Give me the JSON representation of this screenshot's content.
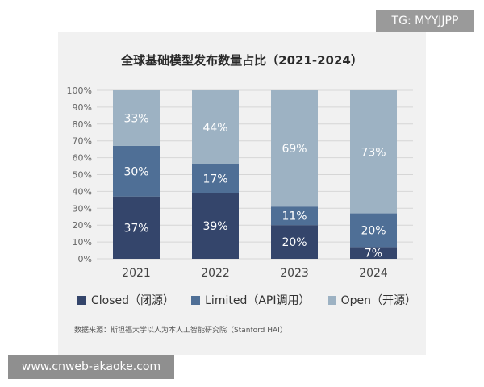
{
  "watermarks": {
    "top": "TG: MYYJJPP",
    "bottom": "www.cnweb-akaoke.com"
  },
  "chart_data": {
    "type": "bar",
    "stacked": true,
    "title": "全球基础模型发布数量占比（2021-2024）",
    "categories": [
      "2021",
      "2022",
      "2023",
      "2024"
    ],
    "series": [
      {
        "name": "Closed（闭源）",
        "values": [
          37,
          39,
          20,
          7
        ],
        "labels": [
          "37%",
          "39%",
          "20%",
          "7%"
        ],
        "color": "#34456b"
      },
      {
        "name": "Limited（API调用）",
        "values": [
          30,
          17,
          11,
          20
        ],
        "labels": [
          "30%",
          "17%",
          "11%",
          "20%"
        ],
        "color": "#4f6f96"
      },
      {
        "name": "Open（开源）",
        "values": [
          33,
          44,
          69,
          73
        ],
        "labels": [
          "33%",
          "44%",
          "69%",
          "73%"
        ],
        "color": "#9db2c3"
      }
    ],
    "yticks": [
      "0%",
      "10%",
      "20%",
      "30%",
      "40%",
      "50%",
      "60%",
      "70%",
      "80%",
      "90%",
      "100%"
    ],
    "ylim": [
      0,
      100
    ],
    "grid": true,
    "legend": "bottom",
    "source": "数据来源：斯坦福大学以人为本人工智能研究院（Stanford HAI）"
  }
}
